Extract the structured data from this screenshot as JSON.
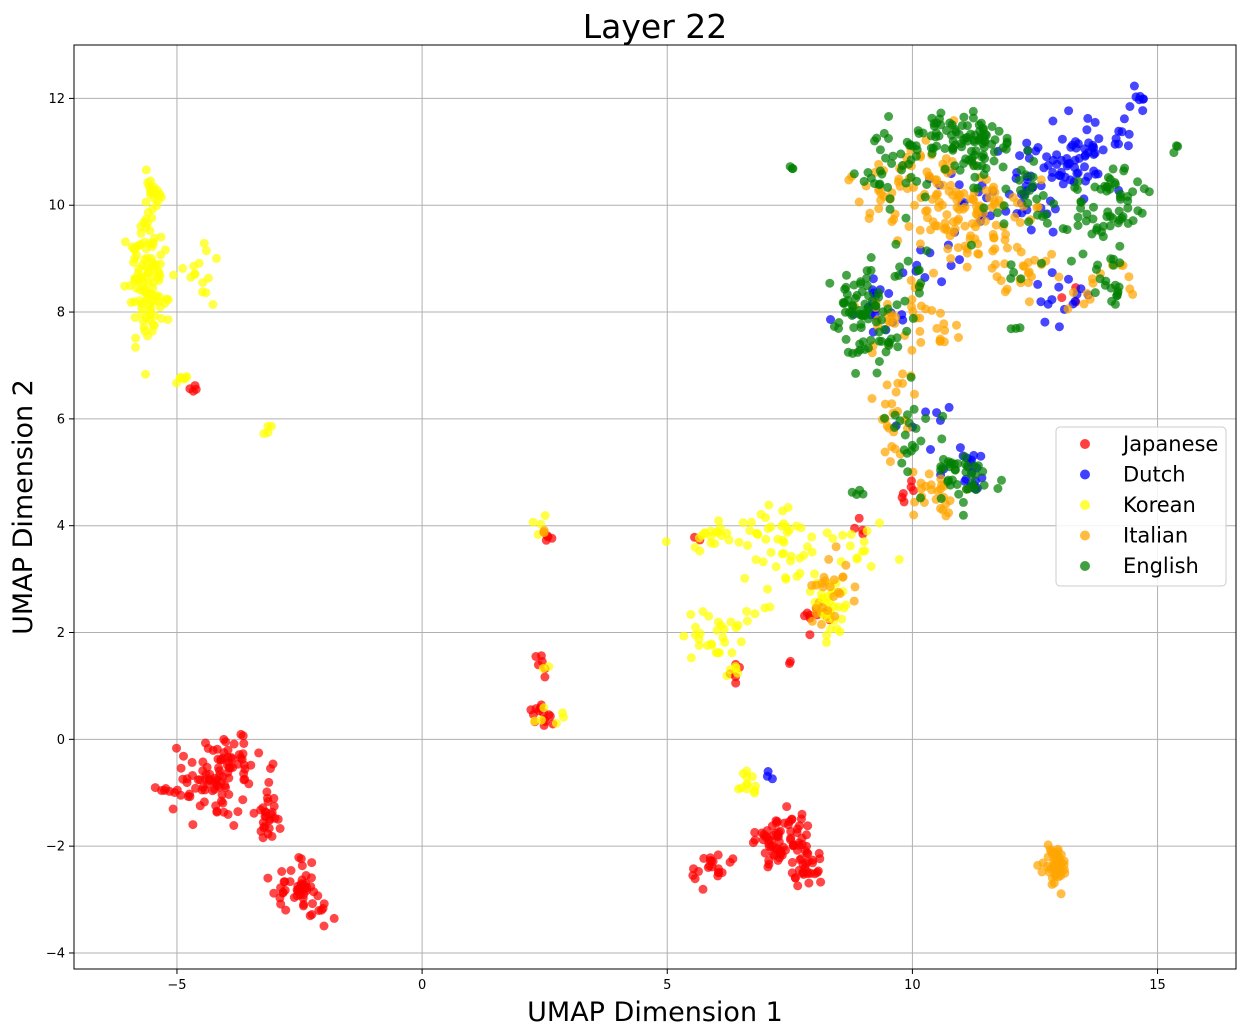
{
  "chart_data": {
    "type": "scatter",
    "title": "Layer 22",
    "xlabel": "UMAP Dimension 1",
    "ylabel": "UMAP Dimension 2",
    "xlim": [
      -7.1,
      16.6
    ],
    "ylim": [
      -4.3,
      13.0
    ],
    "xticks": [
      -5,
      0,
      5,
      10,
      15
    ],
    "yticks": [
      -4,
      -2,
      0,
      2,
      4,
      6,
      8,
      10,
      12
    ],
    "grid": true,
    "legend_position": "center-right",
    "series": [
      {
        "name": "Japanese",
        "color": "#ff0000",
        "clusters": [
          {
            "cx": -4.4,
            "cy": -0.8,
            "sx": 0.35,
            "sy": 0.3,
            "n": 70
          },
          {
            "cx": -3.9,
            "cy": -0.4,
            "sx": 0.25,
            "sy": 0.2,
            "n": 30
          },
          {
            "cx": -3.1,
            "cy": -1.3,
            "sx": 0.12,
            "sy": 0.35,
            "n": 30
          },
          {
            "cx": -2.5,
            "cy": -2.8,
            "sx": 0.25,
            "sy": 0.25,
            "n": 45
          },
          {
            "cx": -2.1,
            "cy": -3.3,
            "sx": 0.12,
            "sy": 0.12,
            "n": 8
          },
          {
            "cx": -5.2,
            "cy": -0.95,
            "sx": 0.05,
            "sy": 0.03,
            "n": 4
          },
          {
            "cx": -4.65,
            "cy": 6.55,
            "sx": 0.04,
            "sy": 0.05,
            "n": 4
          },
          {
            "cx": 2.4,
            "cy": 1.45,
            "sx": 0.08,
            "sy": 0.1,
            "n": 6
          },
          {
            "cx": 2.45,
            "cy": 0.5,
            "sx": 0.15,
            "sy": 0.15,
            "n": 14
          },
          {
            "cx": 2.6,
            "cy": 3.8,
            "sx": 0.05,
            "sy": 0.05,
            "n": 4
          },
          {
            "cx": 5.8,
            "cy": -2.45,
            "sx": 0.25,
            "sy": 0.15,
            "n": 20
          },
          {
            "cx": 7.3,
            "cy": -2.0,
            "sx": 0.35,
            "sy": 0.3,
            "n": 80
          },
          {
            "cx": 7.9,
            "cy": -2.35,
            "sx": 0.15,
            "sy": 0.2,
            "n": 20
          },
          {
            "cx": 8.1,
            "cy": 2.4,
            "sx": 0.15,
            "sy": 0.2,
            "n": 12
          },
          {
            "cx": 6.5,
            "cy": 1.25,
            "sx": 0.1,
            "sy": 0.08,
            "n": 5
          },
          {
            "cx": 9.9,
            "cy": 4.5,
            "sx": 0.15,
            "sy": 0.2,
            "n": 6
          },
          {
            "cx": 13.2,
            "cy": 8.3,
            "sx": 0.1,
            "sy": 0.1,
            "n": 3
          },
          {
            "cx": 8.9,
            "cy": 4.0,
            "sx": 0.1,
            "sy": 0.2,
            "n": 4
          },
          {
            "cx": 5.6,
            "cy": 3.7,
            "sx": 0.05,
            "sy": 0.05,
            "n": 2
          },
          {
            "cx": 7.5,
            "cy": 1.4,
            "sx": 0.05,
            "sy": 0.05,
            "n": 2
          }
        ]
      },
      {
        "name": "Dutch",
        "color": "#0000ff",
        "clusters": [
          {
            "cx": 13.2,
            "cy": 10.8,
            "sx": 0.4,
            "sy": 0.3,
            "n": 50
          },
          {
            "cx": 13.9,
            "cy": 11.2,
            "sx": 0.3,
            "sy": 0.2,
            "n": 20
          },
          {
            "cx": 14.6,
            "cy": 12.0,
            "sx": 0.1,
            "sy": 0.15,
            "n": 8
          },
          {
            "cx": 12.0,
            "cy": 10.2,
            "sx": 0.6,
            "sy": 0.4,
            "n": 40
          },
          {
            "cx": 11.2,
            "cy": 5.0,
            "sx": 0.2,
            "sy": 0.25,
            "n": 20
          },
          {
            "cx": 9.4,
            "cy": 8.0,
            "sx": 0.3,
            "sy": 0.3,
            "n": 20
          },
          {
            "cx": 12.9,
            "cy": 8.3,
            "sx": 0.3,
            "sy": 0.3,
            "n": 15
          },
          {
            "cx": 10.3,
            "cy": 9.0,
            "sx": 0.3,
            "sy": 0.3,
            "n": 10
          },
          {
            "cx": 7.1,
            "cy": -0.65,
            "sx": 0.04,
            "sy": 0.04,
            "n": 3
          },
          {
            "cx": 10.3,
            "cy": 5.9,
            "sx": 0.3,
            "sy": 0.4,
            "n": 8
          }
        ]
      },
      {
        "name": "Korean",
        "color": "#ffff00",
        "clusters": [
          {
            "cx": -5.6,
            "cy": 8.6,
            "sx": 0.2,
            "sy": 0.55,
            "n": 110
          },
          {
            "cx": -5.5,
            "cy": 10.2,
            "sx": 0.1,
            "sy": 0.2,
            "n": 20
          },
          {
            "cx": -4.6,
            "cy": 8.7,
            "sx": 0.2,
            "sy": 0.3,
            "n": 15
          },
          {
            "cx": -4.8,
            "cy": 6.75,
            "sx": 0.1,
            "sy": 0.08,
            "n": 6
          },
          {
            "cx": -3.2,
            "cy": 5.8,
            "sx": 0.1,
            "sy": 0.08,
            "n": 4
          },
          {
            "cx": 2.4,
            "cy": 4.0,
            "sx": 0.08,
            "sy": 0.1,
            "n": 4
          },
          {
            "cx": 2.6,
            "cy": 0.45,
            "sx": 0.2,
            "sy": 0.1,
            "n": 6
          },
          {
            "cx": 2.5,
            "cy": 1.4,
            "sx": 0.05,
            "sy": 0.05,
            "n": 2
          },
          {
            "cx": 6.0,
            "cy": 3.8,
            "sx": 0.3,
            "sy": 0.15,
            "n": 20
          },
          {
            "cx": 7.2,
            "cy": 4.0,
            "sx": 0.35,
            "sy": 0.2,
            "n": 25
          },
          {
            "cx": 7.6,
            "cy": 3.2,
            "sx": 0.3,
            "sy": 0.25,
            "n": 20
          },
          {
            "cx": 5.8,
            "cy": 1.9,
            "sx": 0.25,
            "sy": 0.2,
            "n": 20
          },
          {
            "cx": 6.6,
            "cy": 2.2,
            "sx": 0.3,
            "sy": 0.3,
            "n": 12
          },
          {
            "cx": 8.3,
            "cy": 2.5,
            "sx": 0.2,
            "sy": 0.3,
            "n": 30
          },
          {
            "cx": 8.9,
            "cy": 3.6,
            "sx": 0.3,
            "sy": 0.3,
            "n": 15
          },
          {
            "cx": 6.6,
            "cy": -0.9,
            "sx": 0.12,
            "sy": 0.2,
            "n": 12
          },
          {
            "cx": 6.3,
            "cy": 1.2,
            "sx": 0.1,
            "sy": 0.1,
            "n": 5
          }
        ]
      },
      {
        "name": "Italian",
        "color": "#ffa500",
        "clusters": [
          {
            "cx": 12.9,
            "cy": -2.35,
            "sx": 0.12,
            "sy": 0.15,
            "n": 50
          },
          {
            "cx": 11.0,
            "cy": 9.9,
            "sx": 0.6,
            "sy": 0.5,
            "n": 110
          },
          {
            "cx": 10.2,
            "cy": 10.7,
            "sx": 0.4,
            "sy": 0.4,
            "n": 30
          },
          {
            "cx": 12.3,
            "cy": 8.9,
            "sx": 0.4,
            "sy": 0.3,
            "n": 25
          },
          {
            "cx": 13.8,
            "cy": 8.4,
            "sx": 0.4,
            "sy": 0.3,
            "n": 15
          },
          {
            "cx": 9.8,
            "cy": 8.0,
            "sx": 0.4,
            "sy": 0.3,
            "n": 30
          },
          {
            "cx": 9.7,
            "cy": 6.3,
            "sx": 0.25,
            "sy": 0.5,
            "n": 25
          },
          {
            "cx": 10.5,
            "cy": 4.7,
            "sx": 0.3,
            "sy": 0.25,
            "n": 25
          },
          {
            "cx": 8.4,
            "cy": 2.8,
            "sx": 0.25,
            "sy": 0.35,
            "n": 25
          },
          {
            "cx": 9.2,
            "cy": 10.2,
            "sx": 0.3,
            "sy": 0.3,
            "n": 15
          },
          {
            "cx": 2.5,
            "cy": 3.9,
            "sx": 0.05,
            "sy": 0.05,
            "n": 3
          },
          {
            "cx": 10.8,
            "cy": 7.5,
            "sx": 0.3,
            "sy": 0.2,
            "n": 8
          }
        ]
      },
      {
        "name": "English",
        "color": "#008000",
        "clusters": [
          {
            "cx": 11.3,
            "cy": 11.1,
            "sx": 0.4,
            "sy": 0.3,
            "n": 60
          },
          {
            "cx": 10.5,
            "cy": 11.3,
            "sx": 0.4,
            "sy": 0.3,
            "n": 40
          },
          {
            "cx": 9.6,
            "cy": 10.6,
            "sx": 0.4,
            "sy": 0.3,
            "n": 30
          },
          {
            "cx": 14.2,
            "cy": 10.1,
            "sx": 0.4,
            "sy": 0.3,
            "n": 40
          },
          {
            "cx": 13.4,
            "cy": 9.6,
            "sx": 0.4,
            "sy": 0.3,
            "n": 20
          },
          {
            "cx": 14.1,
            "cy": 8.6,
            "sx": 0.2,
            "sy": 0.3,
            "n": 20
          },
          {
            "cx": 12.3,
            "cy": 10.2,
            "sx": 0.5,
            "sy": 0.4,
            "n": 30
          },
          {
            "cx": 9.2,
            "cy": 7.9,
            "sx": 0.35,
            "sy": 0.35,
            "n": 50
          },
          {
            "cx": 8.8,
            "cy": 8.3,
            "sx": 0.3,
            "sy": 0.2,
            "n": 20
          },
          {
            "cx": 11.0,
            "cy": 4.9,
            "sx": 0.3,
            "sy": 0.25,
            "n": 40
          },
          {
            "cx": 9.9,
            "cy": 5.8,
            "sx": 0.2,
            "sy": 0.4,
            "n": 20
          },
          {
            "cx": 9.0,
            "cy": 7.2,
            "sx": 0.2,
            "sy": 0.15,
            "n": 10
          },
          {
            "cx": 15.4,
            "cy": 11.05,
            "sx": 0.05,
            "sy": 0.04,
            "n": 3
          },
          {
            "cx": 7.5,
            "cy": 10.7,
            "sx": 0.04,
            "sy": 0.03,
            "n": 3
          },
          {
            "cx": 8.9,
            "cy": 4.6,
            "sx": 0.1,
            "sy": 0.1,
            "n": 4
          },
          {
            "cx": 12.1,
            "cy": 7.7,
            "sx": 0.08,
            "sy": 0.08,
            "n": 3
          },
          {
            "cx": 10.1,
            "cy": 8.6,
            "sx": 0.3,
            "sy": 0.3,
            "n": 12
          },
          {
            "cx": 12.0,
            "cy": 8.6,
            "sx": 0.1,
            "sy": 0.15,
            "n": 4
          }
        ]
      }
    ]
  }
}
